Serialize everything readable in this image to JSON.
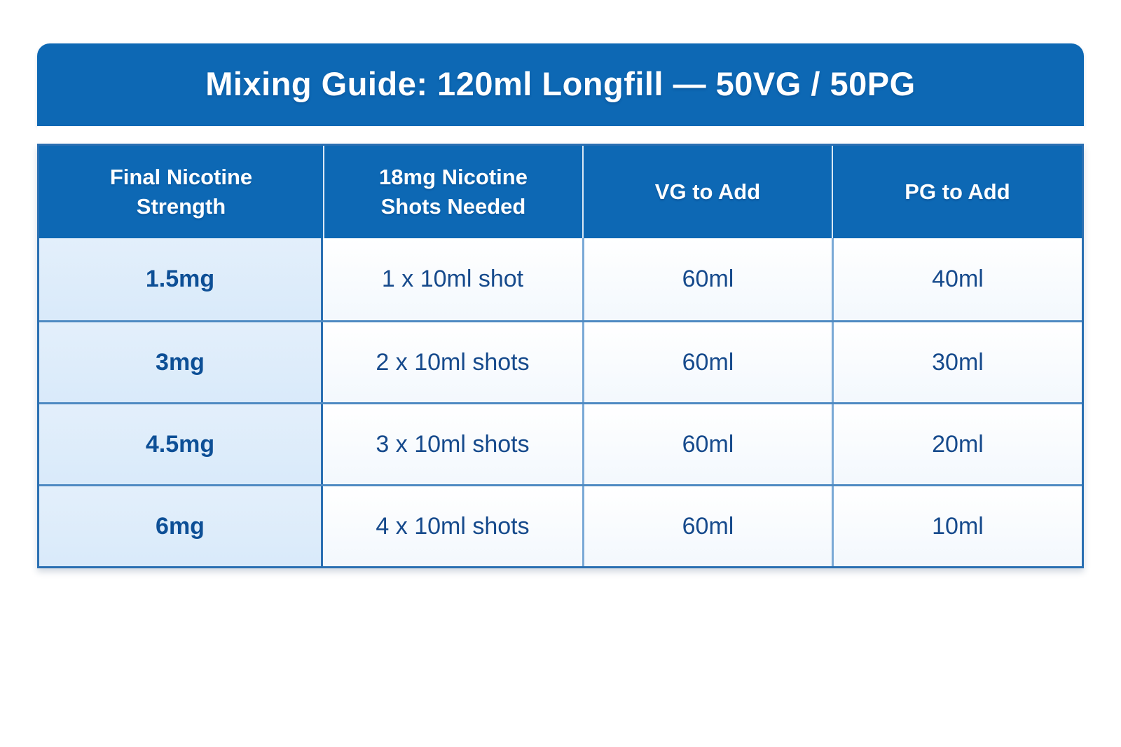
{
  "title": "Mixing Guide: 120ml Longfill — 50VG / 50PG",
  "table": {
    "columns": [
      "Final Nicotine\nStrength",
      "18mg Nicotine\nShots Needed",
      "VG to Add",
      "PG to Add"
    ],
    "rows": [
      [
        "1.5mg",
        "1 x 10ml shot",
        "60ml",
        "40ml"
      ],
      [
        "3mg",
        "2 x 10ml shots",
        "60ml",
        "30ml"
      ],
      [
        "4.5mg",
        "3 x 10ml shots",
        "60ml",
        "20ml"
      ],
      [
        "6mg",
        "4 x 10ml shots",
        "60ml",
        "10ml"
      ]
    ]
  },
  "chart_data": {
    "type": "table",
    "title": "Mixing Guide: 120ml Longfill — 50VG / 50PG",
    "columns": [
      "Final Nicotine Strength",
      "18mg Nicotine Shots Needed",
      "VG to Add",
      "PG to Add"
    ],
    "rows": [
      [
        "1.5mg",
        "1 x 10ml shot",
        "60ml",
        "40ml"
      ],
      [
        "3mg",
        "2 x 10ml shots",
        "60ml",
        "30ml"
      ],
      [
        "4.5mg",
        "3 x 10ml shots",
        "60ml",
        "20ml"
      ],
      [
        "6mg",
        "4 x 10ml shots",
        "60ml",
        "10ml"
      ]
    ]
  },
  "colors": {
    "blue": "#0d68b4",
    "border-dark": "#2a6fb2",
    "row-divider": "#4e8ac2",
    "col-divider": "#7aa9d6",
    "text-navy": "#164a8c",
    "text-strong": "#0d4f96",
    "first-col-bg": "#ddecfa"
  }
}
